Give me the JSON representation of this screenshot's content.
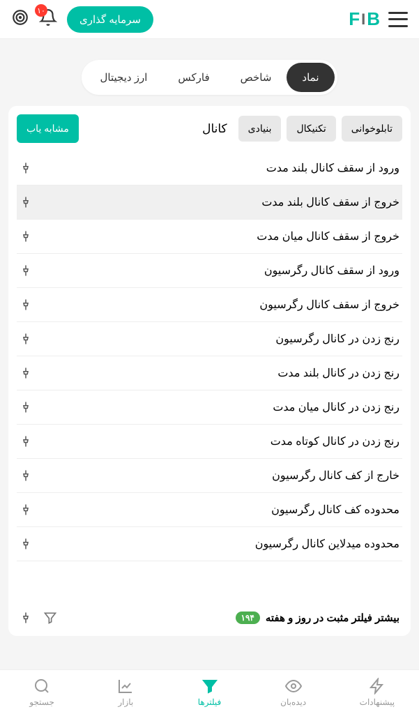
{
  "header": {
    "invest_label": "سرمایه گذاری",
    "notification_count": "۱۰",
    "logo": {
      "b": "B",
      "i": "I",
      "f": "F"
    }
  },
  "tabs": [
    {
      "label": "نماد",
      "active": true
    },
    {
      "label": "شاخص",
      "active": false
    },
    {
      "label": "فارکس",
      "active": false
    },
    {
      "label": "ارز دیجیتال",
      "active": false
    }
  ],
  "filter_chips": [
    {
      "label": "تابلوخوانی"
    },
    {
      "label": "تکنیکال"
    },
    {
      "label": "بنیادی"
    }
  ],
  "channel_label": "کانال",
  "similar_btn": "مشابه یاب",
  "items": [
    {
      "text": "ورود از سقف کانال بلند مدت",
      "highlight": false
    },
    {
      "text": "خروج از سقف کانال بلند مدت",
      "highlight": true
    },
    {
      "text": "خروج از سقف کانال میان مدت",
      "highlight": false
    },
    {
      "text": "ورود از سقف کانال رگرسیون",
      "highlight": false
    },
    {
      "text": "خروج از سقف کانال رگرسیون",
      "highlight": false
    },
    {
      "text": "رنج زدن در کانال رگرسیون",
      "highlight": false
    },
    {
      "text": "رنج زدن در کانال بلند مدت",
      "highlight": false
    },
    {
      "text": "رنج زدن در کانال میان مدت",
      "highlight": false
    },
    {
      "text": "رنج زدن در کانال کوتاه مدت",
      "highlight": false
    },
    {
      "text": "خارج از کف کانال رگرسیون",
      "highlight": false
    },
    {
      "text": "محدوده کف کانال رگرسیون",
      "highlight": false
    },
    {
      "text": "محدوده میدلاین کانال رگرسیون",
      "highlight": false
    }
  ],
  "bottom_row": {
    "text": "بیشتر فیلتر مثبت در روز و هفته",
    "count": "۱۹۴"
  },
  "nav": [
    {
      "label": "پیشنهادات",
      "icon": "bolt"
    },
    {
      "label": "دیده‌بان",
      "icon": "eye"
    },
    {
      "label": "فیلترها",
      "icon": "filter",
      "active": true
    },
    {
      "label": "بازار",
      "icon": "chart"
    },
    {
      "label": "جستجو",
      "icon": "search"
    }
  ],
  "colors": {
    "accent": "#00bfa5",
    "badge_red": "#ff3b30",
    "badge_green": "#4caf50"
  }
}
